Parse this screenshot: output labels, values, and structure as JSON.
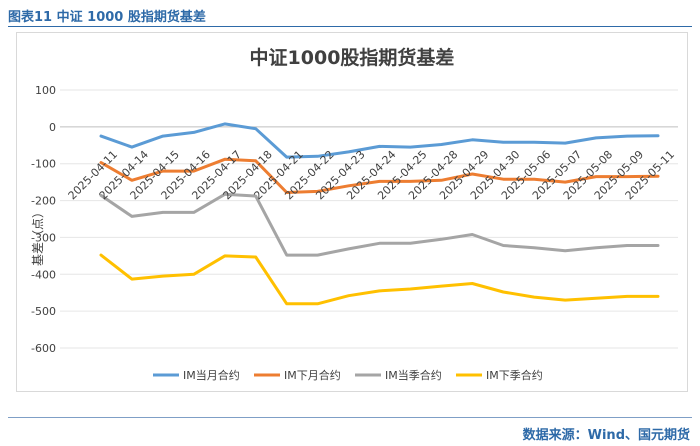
{
  "figure": {
    "caption": "图表11  中证 1000 股指期货基差",
    "source": "数据来源：Wind、国元期货"
  },
  "chart_data": {
    "type": "line",
    "title": "中证1000股指期货基差",
    "xlabel": "",
    "ylabel": "基差（点）",
    "ylim": [
      -600,
      100
    ],
    "yticks": [
      100,
      0,
      -100,
      -200,
      -300,
      -400,
      -500,
      -600
    ],
    "grid": true,
    "legend_position": "bottom",
    "categories": [
      "2025-04-11",
      "2025-04-14",
      "2025-04-15",
      "2025-04-16",
      "2025-04-17",
      "2025-04-18",
      "2025-04-21",
      "2025-04-22",
      "2025-04-23",
      "2025-04-24",
      "2025-04-25",
      "2025-04-28",
      "2025-04-29",
      "2025-04-30",
      "2025-05-06",
      "2025-05-07",
      "2025-05-08",
      "2025-05-09",
      "2025-05-11"
    ],
    "series": [
      {
        "name": "IM当月合约",
        "color": "#5b9bd5",
        "values": [
          -25,
          -55,
          -25,
          -15,
          8,
          -5,
          -82,
          -80,
          -68,
          -53,
          -55,
          -48,
          -35,
          -42,
          -42,
          -44,
          -30,
          -25,
          -24
        ]
      },
      {
        "name": "IM下月合约",
        "color": "#ed7d31",
        "values": [
          -97,
          -145,
          -120,
          -120,
          -88,
          -92,
          -178,
          -175,
          -160,
          -148,
          -148,
          -145,
          -128,
          -142,
          -142,
          -150,
          -135,
          -135,
          -134
        ]
      },
      {
        "name": "IM当季合约",
        "color": "#a5a5a5",
        "values": [
          -186,
          -243,
          -232,
          -232,
          -183,
          -188,
          -348,
          -348,
          -331,
          -316,
          -316,
          -305,
          -292,
          -322,
          -328,
          -336,
          -328,
          -322,
          -322
        ]
      },
      {
        "name": "IM下季合约",
        "color": "#ffc000",
        "values": [
          -348,
          -413,
          -405,
          -400,
          -350,
          -353,
          -480,
          -480,
          -458,
          -445,
          -440,
          -432,
          -425,
          -448,
          -462,
          -470,
          -465,
          -460,
          -460
        ]
      }
    ]
  }
}
